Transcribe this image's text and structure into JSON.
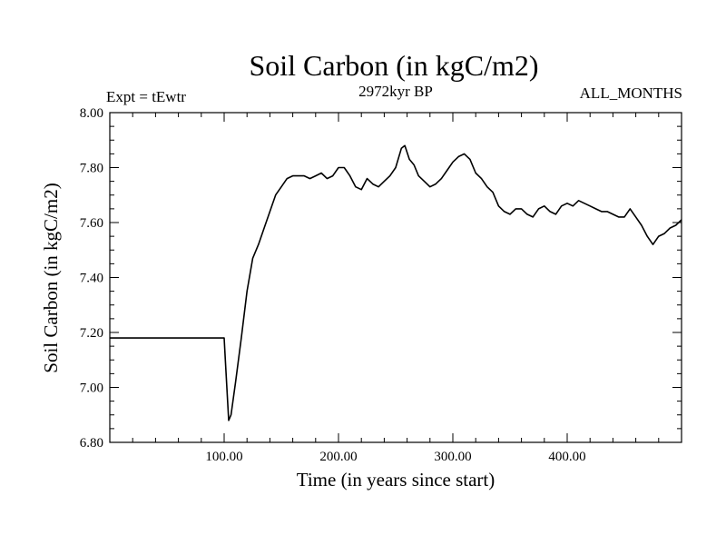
{
  "chart_data": {
    "type": "line",
    "title": "Soil Carbon (in kgC/m2)",
    "subtitle_left": "Expt = tEwtr",
    "subtitle_center": "2972kyr BP",
    "subtitle_right": "ALL_MONTHS",
    "xlabel": "Time (in years since start)",
    "ylabel": "Soil Carbon (in kgC/m2)",
    "xlim": [
      0,
      500
    ],
    "ylim": [
      6.8,
      8.0
    ],
    "x_ticks": [
      100,
      200,
      300,
      400
    ],
    "x_tick_labels": [
      "100.00",
      "200.00",
      "300.00",
      "400.00"
    ],
    "y_ticks": [
      6.8,
      7.0,
      7.2,
      7.4,
      7.6,
      7.8,
      8.0
    ],
    "y_tick_labels": [
      "6.80",
      "7.00",
      "7.20",
      "7.40",
      "7.60",
      "7.80",
      "8.00"
    ],
    "series": [
      {
        "name": "Soil Carbon",
        "color": "#000000",
        "x": [
          0,
          100,
          101,
          103,
          104,
          106,
          110,
          115,
          120,
          125,
          130,
          135,
          140,
          145,
          150,
          155,
          160,
          165,
          170,
          175,
          180,
          185,
          190,
          195,
          200,
          205,
          210,
          215,
          220,
          225,
          230,
          235,
          240,
          245,
          250,
          255,
          258,
          262,
          266,
          270,
          275,
          280,
          285,
          290,
          295,
          300,
          305,
          310,
          315,
          320,
          325,
          330,
          335,
          340,
          345,
          350,
          355,
          360,
          365,
          370,
          375,
          380,
          385,
          390,
          395,
          400,
          405,
          410,
          415,
          420,
          425,
          430,
          435,
          440,
          445,
          450,
          455,
          460,
          465,
          470,
          475,
          480,
          485,
          490,
          495,
          500
        ],
        "values": [
          7.18,
          7.18,
          7.1,
          6.95,
          6.88,
          6.9,
          7.02,
          7.18,
          7.35,
          7.47,
          7.52,
          7.58,
          7.64,
          7.7,
          7.73,
          7.76,
          7.77,
          7.77,
          7.77,
          7.76,
          7.77,
          7.78,
          7.76,
          7.77,
          7.8,
          7.8,
          7.77,
          7.73,
          7.72,
          7.76,
          7.74,
          7.73,
          7.75,
          7.77,
          7.8,
          7.87,
          7.88,
          7.83,
          7.81,
          7.77,
          7.75,
          7.73,
          7.74,
          7.76,
          7.79,
          7.82,
          7.84,
          7.85,
          7.83,
          7.78,
          7.76,
          7.73,
          7.71,
          7.66,
          7.64,
          7.63,
          7.65,
          7.65,
          7.63,
          7.62,
          7.65,
          7.66,
          7.64,
          7.63,
          7.66,
          7.67,
          7.66,
          7.68,
          7.67,
          7.66,
          7.65,
          7.64,
          7.64,
          7.63,
          7.62,
          7.62,
          7.65,
          7.62,
          7.59,
          7.55,
          7.52,
          7.55,
          7.56,
          7.58,
          7.59,
          7.61
        ]
      }
    ]
  }
}
